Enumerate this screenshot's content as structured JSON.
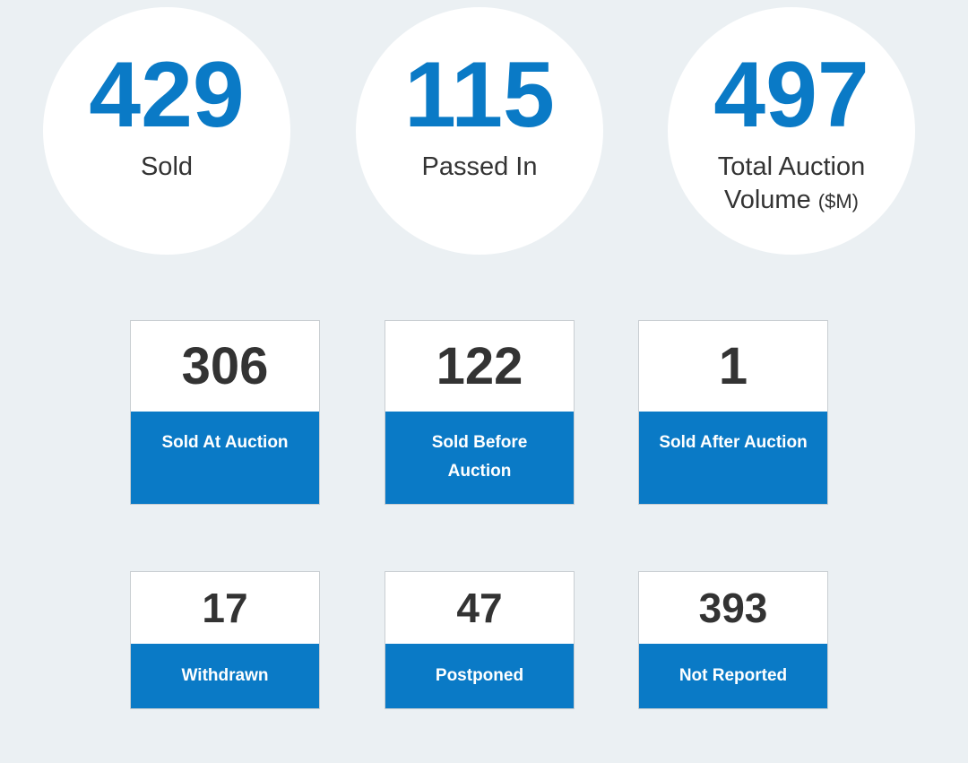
{
  "summary": {
    "sold": {
      "value": "429",
      "label": "Sold"
    },
    "passed_in": {
      "value": "115",
      "label": "Passed In"
    },
    "volume": {
      "value": "497",
      "label": "Total Auction Volume",
      "unit": "($M)"
    }
  },
  "tiles": [
    {
      "value": "306",
      "label": "Sold At Auction"
    },
    {
      "value": "122",
      "label": "Sold Before Auction"
    },
    {
      "value": "1",
      "label": "Sold After Auction"
    },
    {
      "value": "17",
      "label": "Withdrawn"
    },
    {
      "value": "47",
      "label": "Postponed"
    },
    {
      "value": "393",
      "label": "Not Reported"
    }
  ],
  "colors": {
    "accent": "#0a7ac6",
    "background": "#ebf0f3",
    "text": "#333333"
  }
}
